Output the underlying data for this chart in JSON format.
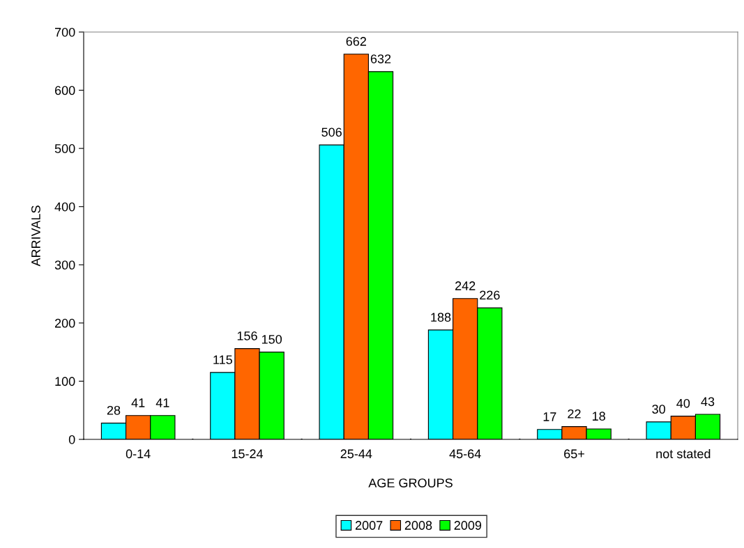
{
  "chart_data": {
    "type": "bar",
    "xlabel": "AGE GROUPS",
    "ylabel": "ARRIVALS",
    "categories": [
      "0-14",
      "15-24",
      "25-44",
      "45-64",
      "65+",
      "not stated"
    ],
    "series": [
      {
        "name": "2007",
        "color": "#00ffff",
        "values": [
          28,
          115,
          506,
          188,
          17,
          30
        ]
      },
      {
        "name": "2008",
        "color": "#ff6600",
        "values": [
          41,
          156,
          662,
          242,
          22,
          40
        ]
      },
      {
        "name": "2009",
        "color": "#00ff00",
        "values": [
          41,
          150,
          632,
          226,
          18,
          43
        ]
      }
    ],
    "ylim": [
      0,
      700
    ],
    "yticks": [
      0,
      100,
      200,
      300,
      400,
      500,
      600,
      700
    ],
    "data_labels": true,
    "grid": false,
    "legend": "bottom"
  }
}
